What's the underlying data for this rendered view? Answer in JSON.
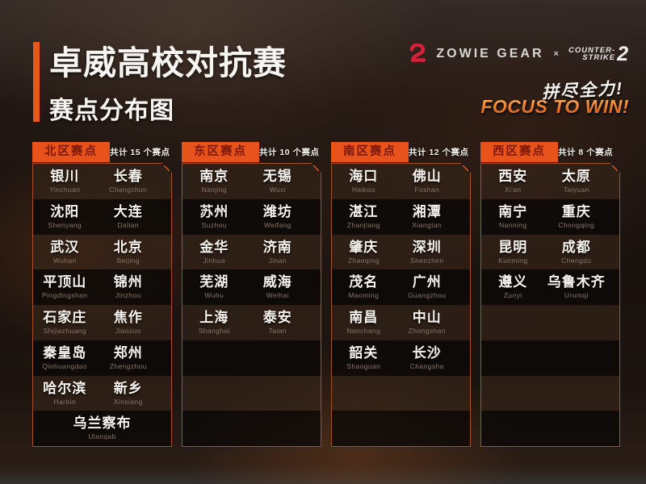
{
  "page": {
    "title": "卓威高校对抗赛",
    "subtitle": "赛点分布图"
  },
  "brand": {
    "zowie_text": "ZOWIE GEAR",
    "separator": "×",
    "cs_line1": "COUNTER-",
    "cs_line2": "STRIKE",
    "cs_number": "2",
    "slogan_cn": "拼尽全力!",
    "slogan_en": "FOCUS TO WIN!"
  },
  "colors": {
    "accent_orange": "#e8581c",
    "region_tag_bg": "#e8531c",
    "region_tag_text": "#7c1808",
    "panel_border": "#a8501f",
    "city_text": "#f6f3ef",
    "pinyin_text": "#8a7668",
    "zowie_logo_red": "#d6203c",
    "slogan_gradient_top": "#f8bd74",
    "slogan_gradient_bottom": "#d8520c"
  },
  "regions": [
    {
      "id": "north",
      "name": "北区赛点",
      "count_label": "共计 15 个赛点",
      "rows": [
        [
          {
            "cn": "银川",
            "py": "Yinchuan"
          },
          {
            "cn": "长春",
            "py": "Changchun"
          }
        ],
        [
          {
            "cn": "沈阳",
            "py": "Shenyang"
          },
          {
            "cn": "大连",
            "py": "Dalian"
          }
        ],
        [
          {
            "cn": "武汉",
            "py": "Wuhan"
          },
          {
            "cn": "北京",
            "py": "Beijing"
          }
        ],
        [
          {
            "cn": "平顶山",
            "py": "Pingdingshan"
          },
          {
            "cn": "锦州",
            "py": "Jinzhou"
          }
        ],
        [
          {
            "cn": "石家庄",
            "py": "Shijiazhuang"
          },
          {
            "cn": "焦作",
            "py": "Jiaozuo"
          }
        ],
        [
          {
            "cn": "秦皇岛",
            "py": "Qinhuangdao"
          },
          {
            "cn": "郑州",
            "py": "Zhengzhou"
          }
        ],
        [
          {
            "cn": "哈尔滨",
            "py": "Harbin"
          },
          {
            "cn": "新乡",
            "py": "Xinxiang"
          }
        ],
        [
          {
            "cn": "乌兰察布",
            "py": "Ulanqab"
          }
        ]
      ]
    },
    {
      "id": "east",
      "name": "东区赛点",
      "count_label": "共计 10 个赛点",
      "rows": [
        [
          {
            "cn": "南京",
            "py": "Nanjing"
          },
          {
            "cn": "无锡",
            "py": "Wuxi"
          }
        ],
        [
          {
            "cn": "苏州",
            "py": "Suzhou"
          },
          {
            "cn": "潍坊",
            "py": "Weifang"
          }
        ],
        [
          {
            "cn": "金华",
            "py": "Jinhua"
          },
          {
            "cn": "济南",
            "py": "Jinan"
          }
        ],
        [
          {
            "cn": "芜湖",
            "py": "Wuhu"
          },
          {
            "cn": "威海",
            "py": "Weihai"
          }
        ],
        [
          {
            "cn": "上海",
            "py": "Shanghai"
          },
          {
            "cn": "泰安",
            "py": "Taian"
          }
        ]
      ]
    },
    {
      "id": "south",
      "name": "南区赛点",
      "count_label": "共计 12 个赛点",
      "rows": [
        [
          {
            "cn": "海口",
            "py": "Haikou"
          },
          {
            "cn": "佛山",
            "py": "Foshan"
          }
        ],
        [
          {
            "cn": "湛江",
            "py": "Zhanjiang"
          },
          {
            "cn": "湘潭",
            "py": "Xiangtan"
          }
        ],
        [
          {
            "cn": "肇庆",
            "py": "Zhaoqing"
          },
          {
            "cn": "深圳",
            "py": "Shenzhen"
          }
        ],
        [
          {
            "cn": "茂名",
            "py": "Maoming"
          },
          {
            "cn": "广州",
            "py": "Guangzhou"
          }
        ],
        [
          {
            "cn": "南昌",
            "py": "Nanchang"
          },
          {
            "cn": "中山",
            "py": "Zhongshan"
          }
        ],
        [
          {
            "cn": "韶关",
            "py": "Shaoguan"
          },
          {
            "cn": "长沙",
            "py": "Changsha"
          }
        ]
      ]
    },
    {
      "id": "west",
      "name": "西区赛点",
      "count_label": "共计 8 个赛点",
      "rows": [
        [
          {
            "cn": "西安",
            "py": "Xi'an"
          },
          {
            "cn": "太原",
            "py": "Taiyuan"
          }
        ],
        [
          {
            "cn": "南宁",
            "py": "Nanning"
          },
          {
            "cn": "重庆",
            "py": "Chongqing"
          }
        ],
        [
          {
            "cn": "昆明",
            "py": "Kunming"
          },
          {
            "cn": "成都",
            "py": "Chengdu"
          }
        ],
        [
          {
            "cn": "遵义",
            "py": "Zunyi"
          },
          {
            "cn": "乌鲁木齐",
            "py": "Urumqi"
          }
        ]
      ]
    }
  ]
}
